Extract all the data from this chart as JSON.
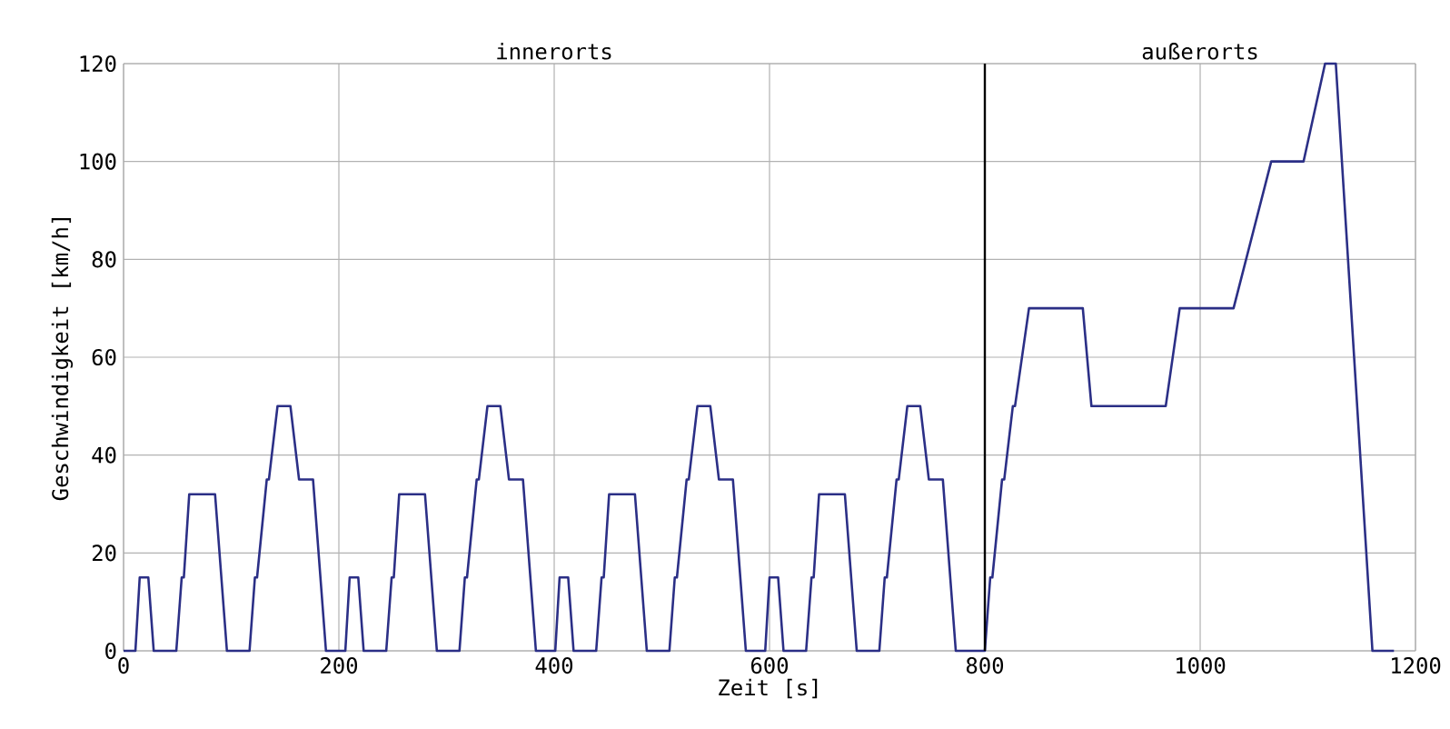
{
  "chart_data": {
    "type": "line",
    "xlabel": "Zeit [s]",
    "ylabel": "Geschwindigkeit [km/h]",
    "annotations": [
      "innerorts",
      "außerorts"
    ],
    "x": [
      0,
      11,
      15,
      23,
      28,
      49,
      54,
      56,
      61,
      85,
      96,
      117,
      122,
      124,
      133,
      135,
      143,
      155,
      163,
      176,
      188,
      195,
      206,
      210,
      218,
      223,
      244,
      249,
      251,
      256,
      280,
      291,
      312,
      317,
      319,
      328,
      330,
      338,
      350,
      358,
      371,
      383,
      390,
      401,
      405,
      413,
      418,
      439,
      444,
      446,
      451,
      475,
      486,
      507,
      512,
      514,
      523,
      525,
      533,
      545,
      553,
      566,
      578,
      585,
      596,
      600,
      608,
      613,
      634,
      639,
      641,
      646,
      670,
      681,
      702,
      707,
      709,
      718,
      720,
      728,
      740,
      748,
      761,
      773,
      800,
      805,
      807,
      816,
      818,
      826,
      828,
      841,
      891,
      899,
      968,
      981,
      1031,
      1066,
      1096,
      1116,
      1126,
      1160,
      1180
    ],
    "values": [
      0,
      0,
      15,
      15,
      0,
      0,
      15,
      15,
      32,
      32,
      0,
      0,
      15,
      15,
      35,
      35,
      50,
      50,
      35,
      35,
      0,
      0,
      0,
      15,
      15,
      0,
      0,
      15,
      15,
      32,
      32,
      0,
      0,
      15,
      15,
      35,
      35,
      50,
      50,
      35,
      35,
      0,
      0,
      0,
      15,
      15,
      0,
      0,
      15,
      15,
      32,
      32,
      0,
      0,
      15,
      15,
      35,
      35,
      50,
      50,
      35,
      35,
      0,
      0,
      0,
      15,
      15,
      0,
      0,
      15,
      15,
      32,
      32,
      0,
      0,
      15,
      15,
      35,
      35,
      50,
      50,
      35,
      35,
      0,
      0,
      15,
      15,
      35,
      35,
      50,
      50,
      70,
      70,
      50,
      50,
      70,
      70,
      100,
      100,
      120,
      120,
      0,
      0
    ],
    "color": "#2b2f86",
    "xlim": [
      0,
      1200
    ],
    "ylim": [
      0,
      120
    ],
    "xticks": [
      0,
      200,
      400,
      600,
      800,
      1000,
      1200
    ],
    "yticks": [
      0,
      20,
      40,
      60,
      80,
      100,
      120
    ],
    "grid": true,
    "ref_lines": [
      {
        "axis": "x",
        "value": 800,
        "color": "#000000"
      }
    ]
  }
}
